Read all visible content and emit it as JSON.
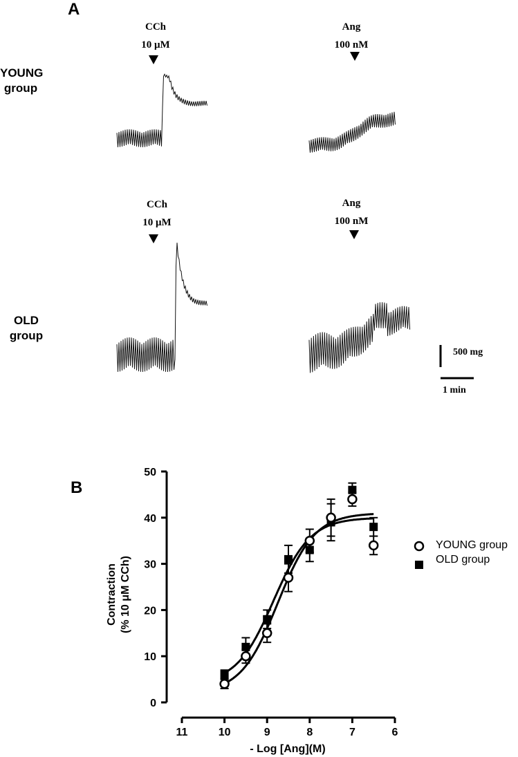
{
  "panel_a": {
    "letter": "A",
    "groups": [
      {
        "label_line1": "YOUNG",
        "label_line2": "group"
      },
      {
        "label_line1": "OLD",
        "label_line2": "group"
      }
    ],
    "stimuli": [
      {
        "drug": "CCh",
        "dose": "10 μM"
      },
      {
        "drug": "Ang",
        "dose": "100 nM"
      },
      {
        "drug": "CCh",
        "dose": "10 μM"
      },
      {
        "drug": "Ang",
        "dose": "100 nM"
      }
    ],
    "scale_force": "500 mg",
    "scale_time": "1 min"
  },
  "panel_b": {
    "letter": "B"
  },
  "chart_data": {
    "type": "scatter",
    "xlabel": "- Log [Ang](M)",
    "ylabel_line1": "Contraction",
    "ylabel_line2": "(% 10 μM CCh)",
    "xlim": [
      11,
      6
    ],
    "ylim": [
      0,
      50
    ],
    "x_ticks": [
      11,
      10,
      9,
      8,
      7,
      6
    ],
    "y_ticks": [
      0,
      10,
      20,
      30,
      40,
      50
    ],
    "series": [
      {
        "name": "YOUNG group",
        "marker": "open-circle",
        "x": [
          10,
          9.5,
          9,
          8.5,
          8,
          7.5,
          7,
          6.5
        ],
        "y": [
          4,
          10,
          15,
          27,
          35,
          40,
          44,
          34
        ],
        "err": [
          1,
          1.5,
          2,
          3,
          2.5,
          4,
          1.5,
          2
        ],
        "fit": {
          "bottom": 2,
          "top": 41,
          "logEC50": -8.75,
          "hill": 1
        }
      },
      {
        "name": "OLD group",
        "marker": "filled-square",
        "x": [
          10,
          9.5,
          9,
          8.5,
          8,
          7.5,
          7,
          6.5
        ],
        "y": [
          6,
          12,
          18,
          31,
          33,
          39,
          46,
          38
        ],
        "err": [
          1,
          2,
          2,
          3,
          2.5,
          4,
          1.5,
          2
        ],
        "fit": {
          "bottom": 4,
          "top": 40,
          "logEC50": -8.85,
          "hill": 1
        }
      }
    ]
  }
}
